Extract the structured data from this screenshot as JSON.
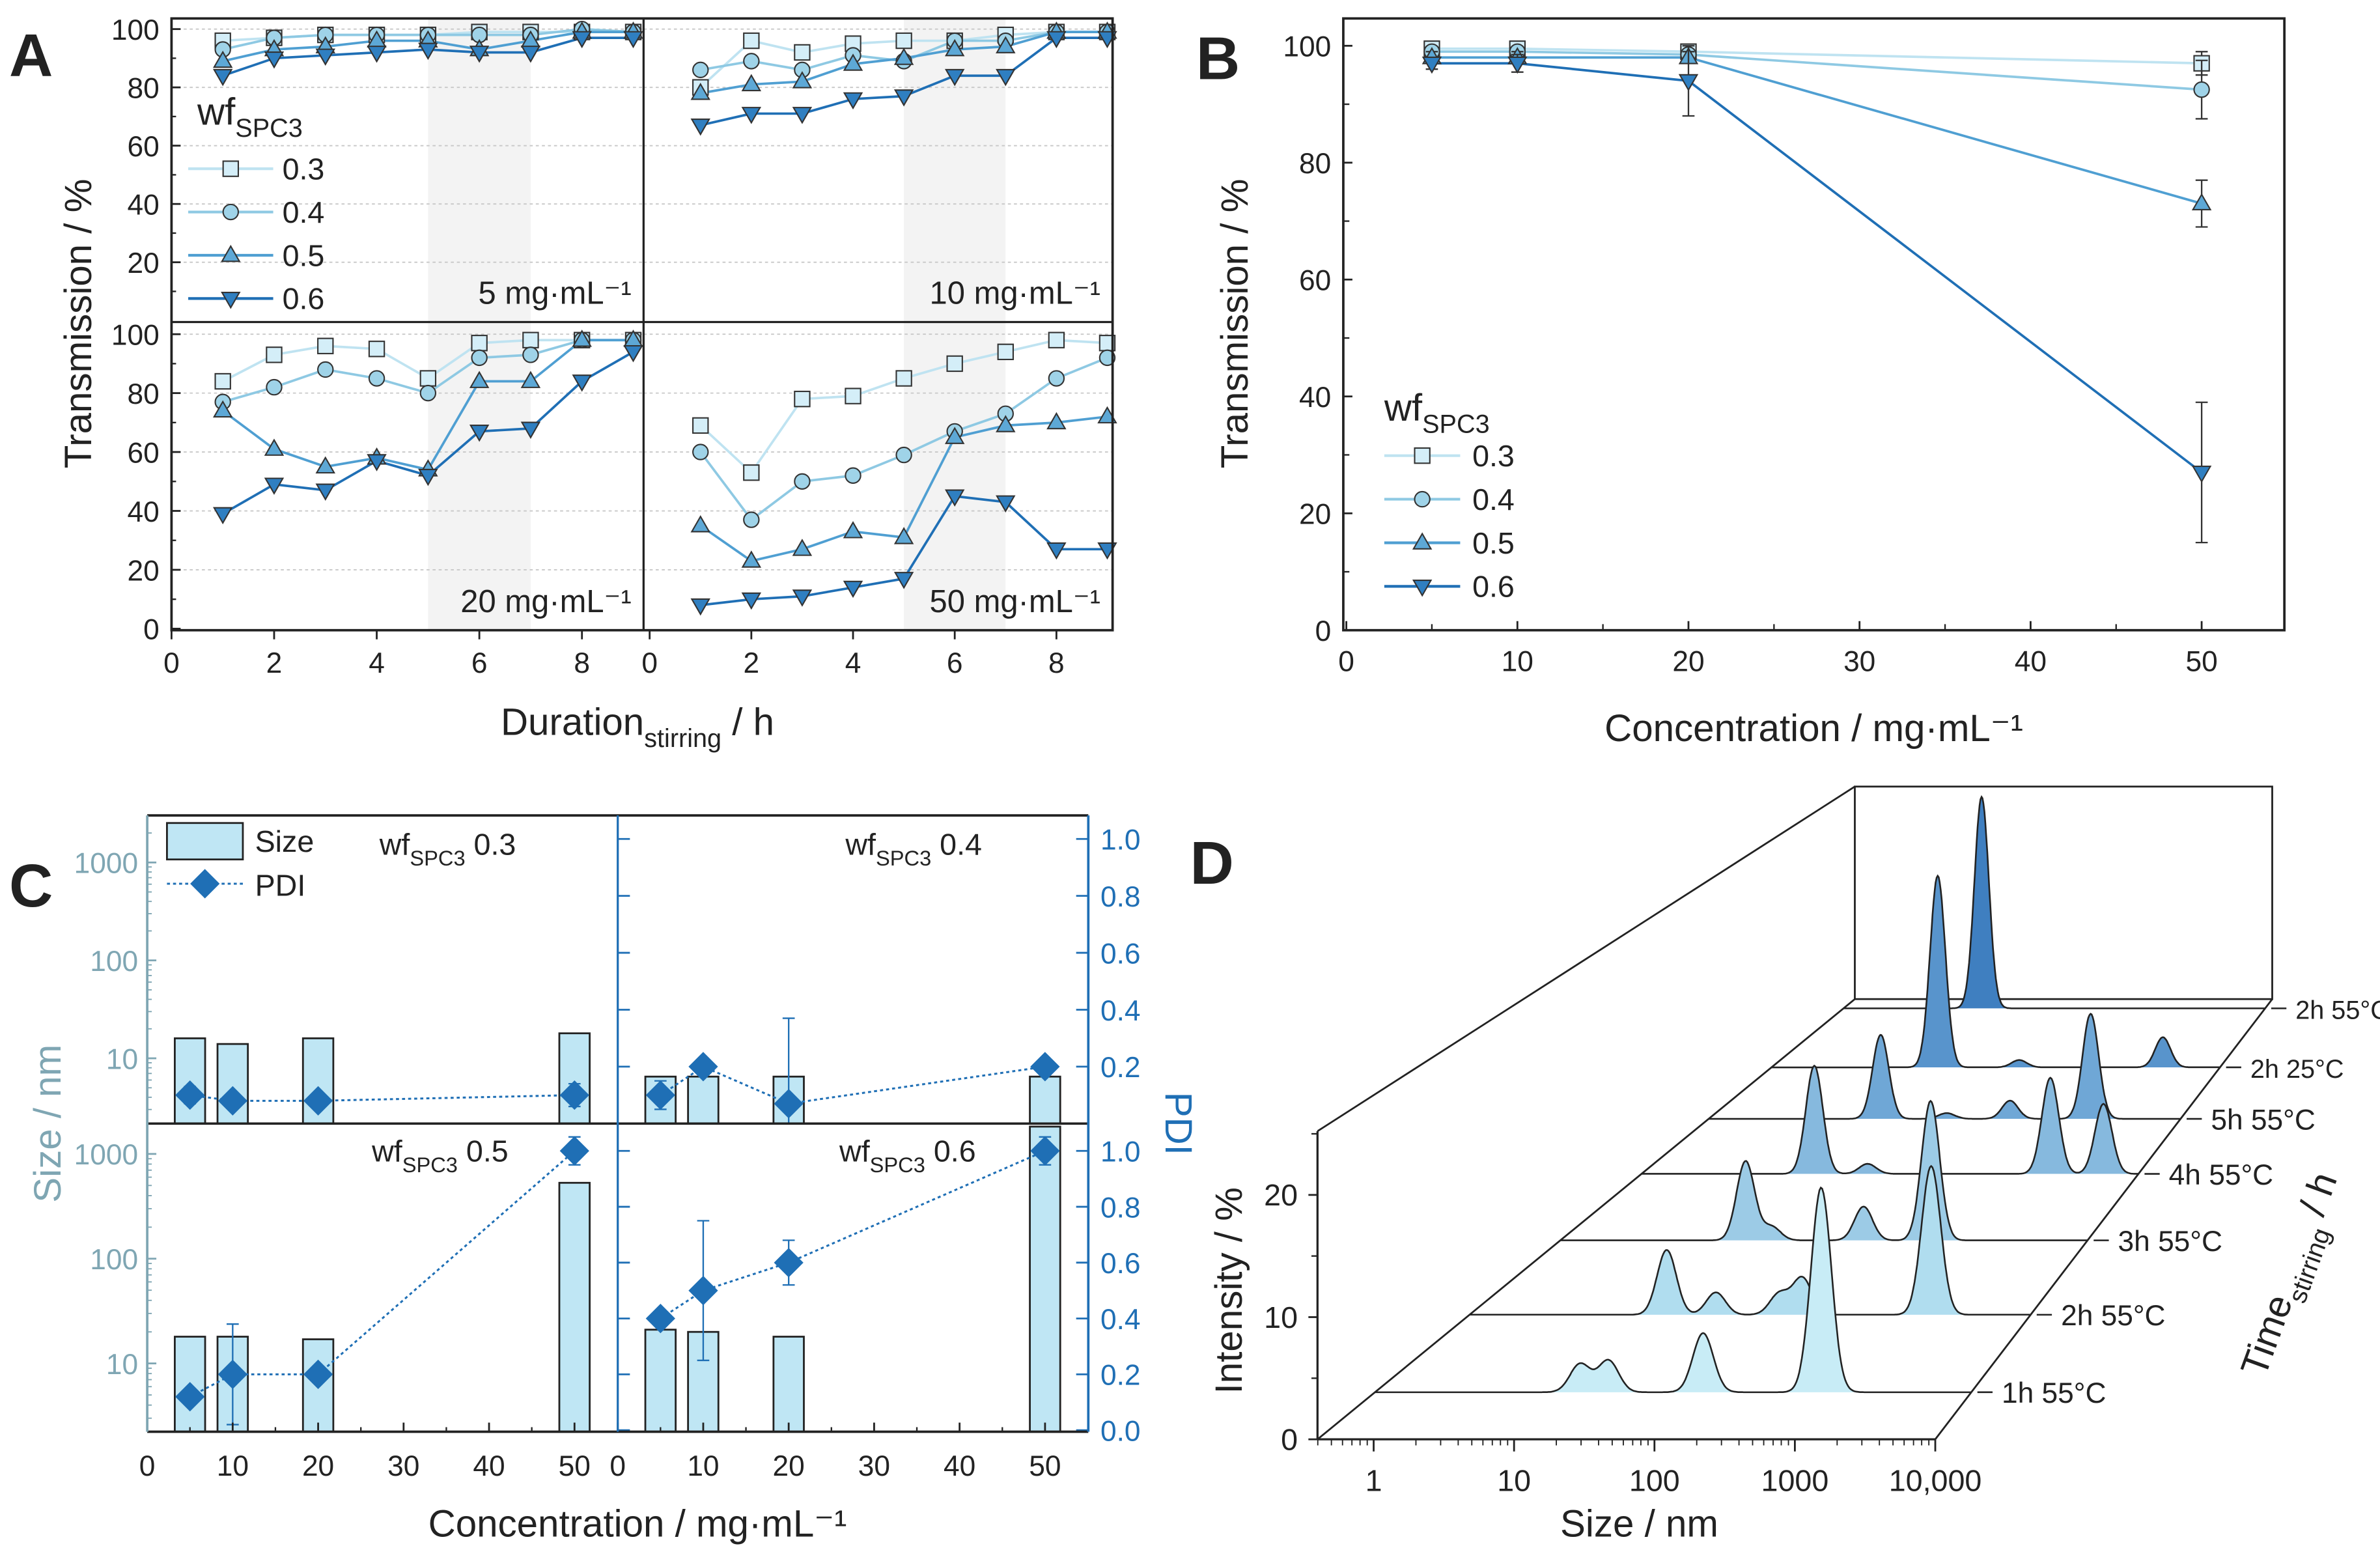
{
  "chart_data": [
    {
      "panel": "A",
      "type": "line",
      "ylabel": "Transmission / %",
      "xlabel": "Duration",
      "xlabel_sub": "stirring",
      "xlabel_unit": " / h",
      "x": [
        1,
        2,
        3,
        4,
        5,
        6,
        7,
        8,
        9
      ],
      "xlim": [
        0,
        9.3
      ],
      "ylim": [
        0,
        100
      ],
      "xticks": [
        0,
        2,
        4,
        6,
        8
      ],
      "grid": true,
      "shaded_interval": [
        5,
        7
      ],
      "legend": {
        "title": "wf",
        "title_sub": "SPC3",
        "placement": "left",
        "items": [
          "0.3",
          "0.4",
          "0.5",
          "0.6"
        ]
      },
      "line_colors": [
        "#bfe3f1",
        "#8ec9e3",
        "#4f9fd2",
        "#1f6fb5"
      ],
      "marker_colors": [
        "#d4eef8",
        "#9fd3e8",
        "#5da8d6",
        "#2f7fc1"
      ],
      "markers": [
        "square",
        "circle",
        "triangle-up",
        "triangle-down"
      ],
      "subpanels": [
        {
          "label": "5 mg·mL⁻¹",
          "series": [
            [
              96,
              97,
              98,
              98,
              98,
              99,
              99,
              99,
              99
            ],
            [
              93,
              97,
              98,
              98,
              98,
              98,
              98,
              100,
              99
            ],
            [
              89,
              93,
              94,
              96,
              96,
              93,
              96,
              99,
              99
            ],
            [
              84,
              90,
              91,
              92,
              93,
              92,
              92,
              97,
              97
            ]
          ]
        },
        {
          "label": "10 mg·mL⁻¹",
          "series": [
            [
              80,
              96,
              92,
              95,
              96,
              96,
              98,
              99,
              99
            ],
            [
              86,
              89,
              86,
              91,
              89,
              96,
              96,
              99,
              99
            ],
            [
              78,
              81,
              82,
              88,
              90,
              93,
              94,
              99,
              99
            ],
            [
              67,
              71,
              71,
              76,
              77,
              84,
              84,
              97,
              97
            ]
          ]
        },
        {
          "label": "20 mg·mL⁻¹",
          "series": [
            [
              84,
              93,
              96,
              95,
              85,
              97,
              98,
              98,
              98
            ],
            [
              77,
              82,
              88,
              85,
              80,
              92,
              93,
              98,
              98
            ],
            [
              74,
              61,
              55,
              58,
              54,
              84,
              84,
              98,
              98
            ],
            [
              39,
              49,
              47,
              57,
              52,
              67,
              68,
              84,
              94
            ]
          ]
        },
        {
          "label": "50 mg·mL⁻¹",
          "series": [
            [
              69,
              53,
              78,
              79,
              85,
              90,
              94,
              98,
              97
            ],
            [
              60,
              37,
              50,
              52,
              59,
              67,
              73,
              85,
              92
            ],
            [
              35,
              23,
              27,
              33,
              31,
              65,
              69,
              70,
              72
            ],
            [
              8,
              10,
              11,
              14,
              17,
              45,
              43,
              27,
              27
            ]
          ]
        }
      ]
    },
    {
      "panel": "B",
      "type": "line",
      "ylabel": "Transmission / %",
      "xlabel": "Concentration / mg·mL⁻¹",
      "x": [
        5,
        10,
        20,
        50
      ],
      "xlim": [
        0,
        55
      ],
      "ylim": [
        0,
        105
      ],
      "xticks": [
        0,
        10,
        20,
        30,
        40,
        50
      ],
      "yticks": [
        0,
        20,
        40,
        60,
        80,
        100
      ],
      "legend": {
        "title": "wf",
        "title_sub": "SPC3",
        "placement": "center-left"
      },
      "series": [
        {
          "name": "0.3",
          "values": [
            99.5,
            99.5,
            99,
            97
          ],
          "err": [
            0.5,
            0.5,
            0.5,
            2
          ]
        },
        {
          "name": "0.4",
          "values": [
            99,
            99,
            98.5,
            92.5
          ],
          "err": [
            0.5,
            0.5,
            0.5,
            5
          ]
        },
        {
          "name": "0.5",
          "values": [
            98,
            98,
            98,
            73
          ],
          "err": [
            1,
            1,
            1,
            4
          ]
        },
        {
          "name": "0.6",
          "values": [
            97,
            97,
            94,
            27
          ],
          "err": [
            1,
            1.5,
            6,
            12
          ]
        }
      ]
    },
    {
      "panel": "C",
      "type": "bar",
      "ylabel": "Size / nm",
      "y2label": "PDI",
      "xlabel": "Concentration / mg·mL⁻¹",
      "x": [
        5,
        10,
        20,
        50
      ],
      "xticks": [
        0,
        10,
        20,
        30,
        40,
        50
      ],
      "yticks": [
        "10",
        "100",
        "1000"
      ],
      "y2ticks_top": [
        "0.2",
        "0.4",
        "0.6",
        "0.8",
        "1.0"
      ],
      "y2ticks_bottom": [
        "0.0",
        "0.2",
        "0.4",
        "0.6",
        "0.8",
        "1.0"
      ],
      "yscale": "log",
      "legend": {
        "size": "Size",
        "pdi": "PDI",
        "placement": "top-left"
      },
      "size_color": "#bfe6f4",
      "size_axis_color": "#7fa6b3",
      "pdi_color": "#1f6fb5",
      "subpanels": [
        {
          "label": "wf",
          "label_sub": "SPC3",
          "label_value": " 0.3",
          "size_nm": [
            16,
            14,
            16,
            18
          ],
          "pdi": [
            0.1,
            0.08,
            0.08,
            0.1
          ],
          "pdi_err": [
            0.03,
            0.01,
            0.01,
            0.04
          ]
        },
        {
          "label": "wf",
          "label_sub": "SPC3",
          "label_value": " 0.4",
          "size_nm": [
            6.5,
            6.5,
            6.5,
            6.5
          ],
          "pdi": [
            0.1,
            0.2,
            0.07,
            0.2
          ],
          "pdi_err": [
            0.05,
            0.02,
            0.3,
            0.01
          ]
        },
        {
          "label": "wf",
          "label_sub": "SPC3",
          "label_value": " 0.5",
          "size_nm": [
            18,
            18,
            17,
            530
          ],
          "pdi": [
            0.12,
            0.2,
            0.2,
            1.0
          ],
          "pdi_err": [
            0.02,
            0.18,
            0.02,
            0.05
          ]
        },
        {
          "label": "wf",
          "label_sub": "SPC3",
          "label_value": " 0.6",
          "size_nm": [
            21,
            20,
            18,
            2400
          ],
          "pdi": [
            0.4,
            0.5,
            0.6,
            1.0
          ],
          "pdi_err": [
            0.02,
            0.25,
            0.08,
            0.05
          ]
        }
      ]
    },
    {
      "panel": "D",
      "type": "area",
      "xlabel": "Size / nm",
      "ylabel": "Intensity / %",
      "zlabel": "Time",
      "zlabel_sub": "stirring",
      "zlabel_unit": " / h",
      "xscale": "log",
      "xticks": [
        "1",
        "10",
        "100",
        "1000",
        "10,000"
      ],
      "yticks": [
        "0",
        "10",
        "20"
      ],
      "trace_colors": [
        "#c8ecf6",
        "#b0ddef",
        "#9ccbe6",
        "#86b9de",
        "#6fa7d6",
        "#5894cc",
        "#3f7fc0"
      ],
      "traces": [
        {
          "label": "1h 55°C",
          "peaks": [
            [
              13,
              2.4
            ],
            [
              21,
              2.7
            ],
            [
              105,
              5
            ],
            [
              780,
              17.3
            ]
          ]
        },
        {
          "label": "2h 55°C",
          "peaks": [
            [
              14,
              5.8
            ],
            [
              34,
              2
            ],
            [
              107,
              1.9
            ],
            [
              162,
              3.3
            ],
            [
              1660,
              13.3
            ]
          ]
        },
        {
          "label": "3h 55°C",
          "peaks": [
            [
              14,
              7.5
            ],
            [
              23,
              1.3
            ],
            [
              135,
              3.2
            ],
            [
              490,
              13.2
            ]
          ]
        },
        {
          "label": "4h 55°C",
          "peaks": [
            [
              13.5,
              10.8
            ],
            [
              40,
              1
            ],
            [
              1660,
              9.6
            ],
            [
              4900,
              7
            ]
          ]
        },
        {
          "label": "5h 55°C",
          "peaks": [
            [
              16,
              8.8
            ],
            [
              66,
              0.6
            ],
            [
              257,
              1.9
            ],
            [
              1450,
              11
            ]
          ]
        },
        {
          "label": "2h 25°C",
          "peaks": [
            [
              17,
              21
            ],
            [
              107,
              0.8
            ],
            [
              2750,
              3.3
            ]
          ]
        },
        {
          "label": "2h 55°C",
          "peaks": [
            [
              11,
              24.5
            ]
          ]
        }
      ]
    }
  ]
}
